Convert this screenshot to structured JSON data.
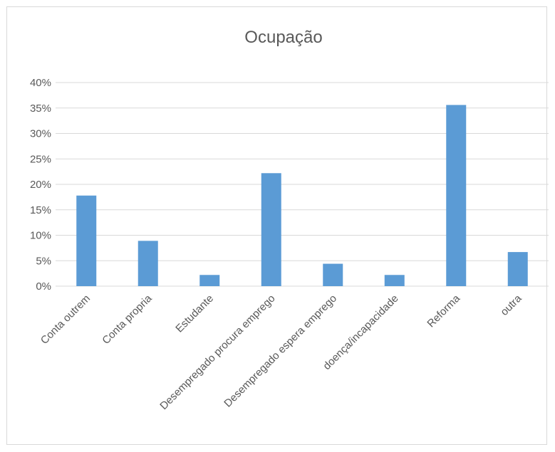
{
  "chart_data": {
    "type": "bar",
    "title": "Ocupação",
    "xlabel": "",
    "ylabel": "",
    "categories": [
      "Conta outrem",
      "Conta propria",
      "Estudante",
      "Desempregado procura emprego",
      "Desempregado espera emprego",
      "doença/incapacidade",
      "Reforma",
      "outra"
    ],
    "values": [
      0.178,
      0.089,
      0.022,
      0.222,
      0.044,
      0.022,
      0.356,
      0.067
    ],
    "ylim": [
      0,
      0.4
    ],
    "yticks": [
      "0%",
      "5%",
      "10%",
      "15%",
      "20%",
      "25%",
      "30%",
      "35%",
      "40%"
    ],
    "grid": true,
    "legend": "none",
    "bar_color": "#5b9bd5",
    "grid_color": "#d9d9d9",
    "text_color": "#595959"
  }
}
